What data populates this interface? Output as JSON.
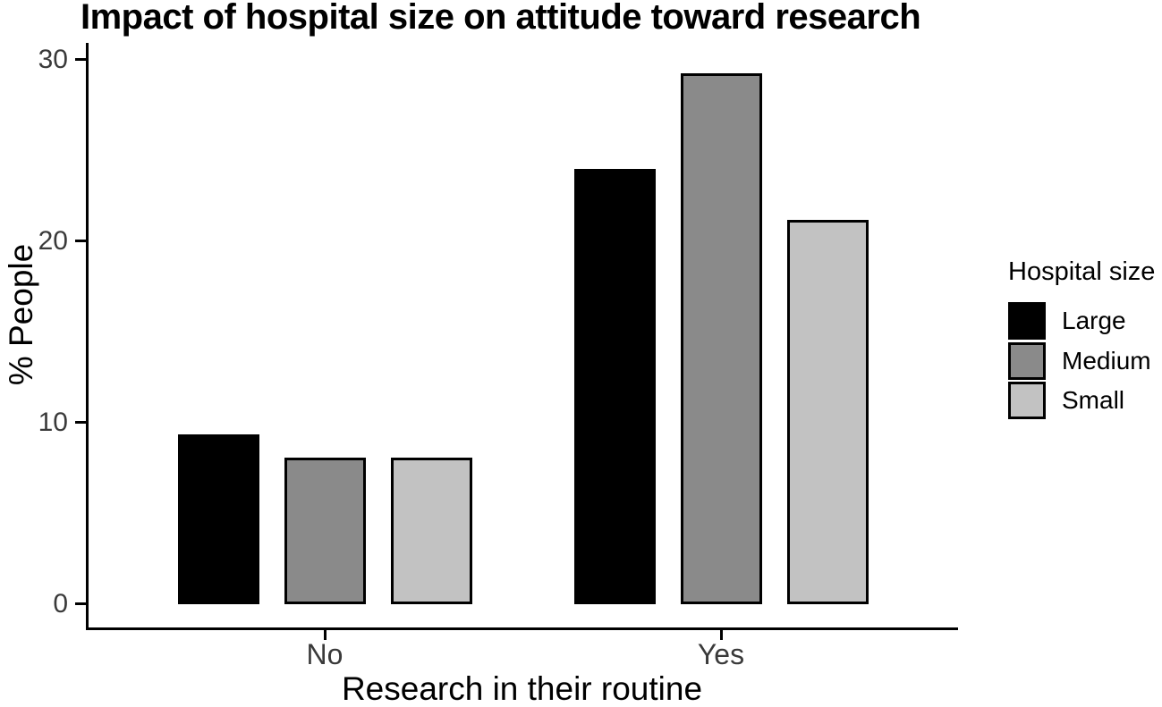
{
  "figure": {
    "title": "Impact of hospital size on attitude toward research"
  },
  "chart_data": {
    "type": "bar",
    "title": "Impact of hospital size on attitude toward research",
    "xlabel": "Research in their routine",
    "ylabel": "% People",
    "categories": [
      "No",
      "Yes"
    ],
    "series": [
      {
        "name": "Large",
        "color": "#000000",
        "values": [
          9.4,
          24.0
        ]
      },
      {
        "name": "Medium",
        "color": "#8a8a8a",
        "values": [
          8.1,
          29.3
        ]
      },
      {
        "name": "Small",
        "color": "#c2c2c2",
        "values": [
          8.1,
          21.2
        ]
      }
    ],
    "ylim": [
      0,
      30
    ],
    "yticks": [
      0,
      10,
      20,
      30
    ],
    "grid": false,
    "bar_outline_color": "#000000",
    "legend": {
      "title": "Hospital size",
      "position": "right",
      "items": [
        {
          "label": "Large",
          "color": "#000000"
        },
        {
          "label": "Medium",
          "color": "#8a8a8a"
        },
        {
          "label": "Small",
          "color": "#c2c2c2"
        }
      ]
    }
  }
}
